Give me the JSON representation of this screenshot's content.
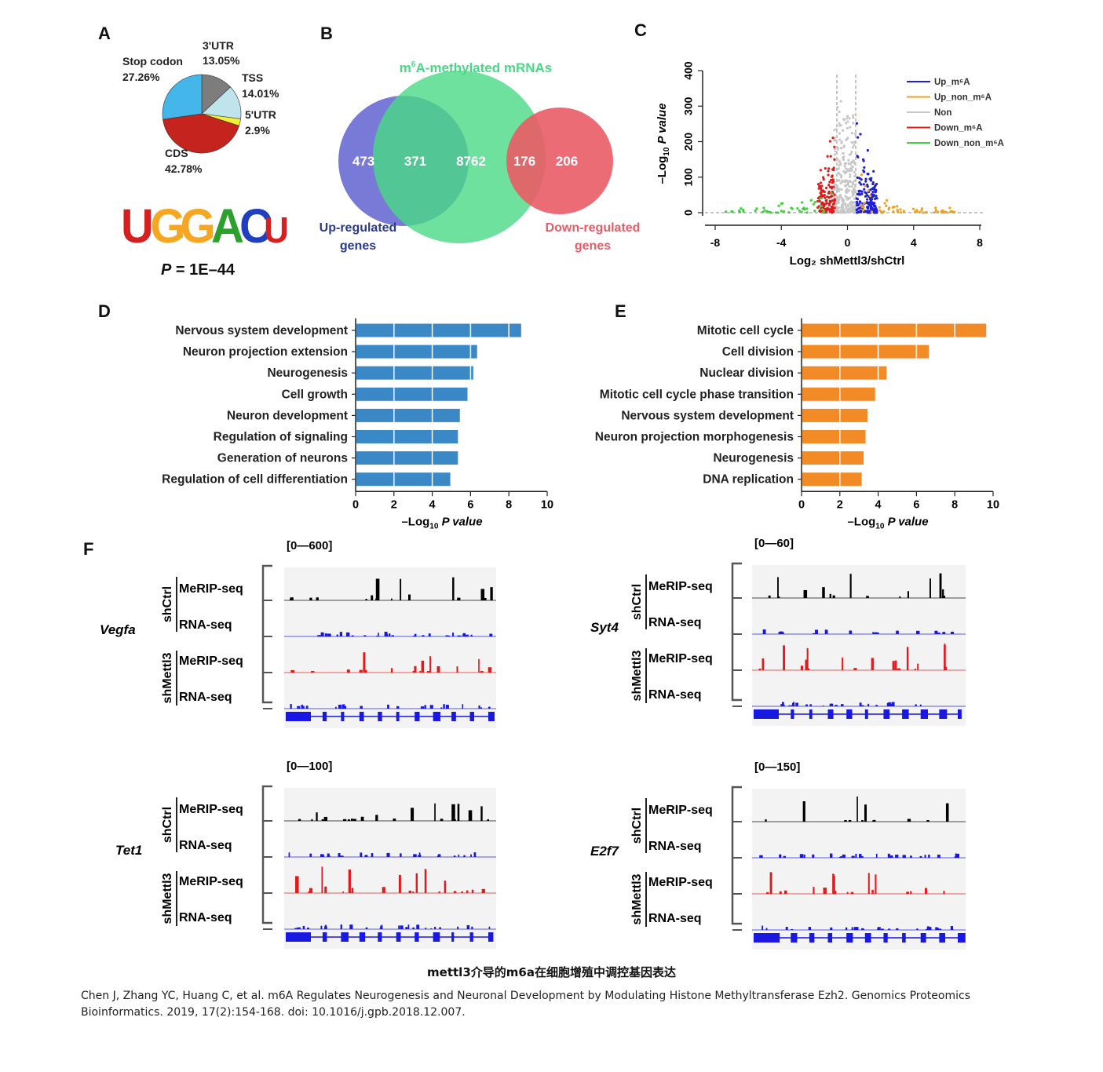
{
  "panels": {
    "a": "A",
    "b": "B",
    "c": "C",
    "d": "D",
    "e": "E",
    "f": "F"
  },
  "colors": {
    "blue_bar": "#3a88c6",
    "orange_bar": "#f28a26",
    "venn_up": "#6a6ad4",
    "venn_mid": "#49d985",
    "venn_down": "#e95c66",
    "up_m6a": "#1f1fd6",
    "up_non": "#f0a020",
    "non": "#c8c8c8",
    "down_m6a": "#e01b1b",
    "down_non": "#3ad43a"
  },
  "chart_data": [
    {
      "type": "pie",
      "panel": "A",
      "slices": [
        {
          "label": "3'UTR",
          "value": 13.05,
          "value_label": "13.05%",
          "color": "#7d7d7d"
        },
        {
          "label": "TSS",
          "value": 14.01,
          "value_label": "14.01%",
          "color": "#bfe4ec"
        },
        {
          "label": "5'UTR",
          "value": 2.9,
          "value_label": "2.9%",
          "color": "#f1f134"
        },
        {
          "label": "CDS",
          "value": 42.78,
          "value_label": "42.78%",
          "color": "#c5231d"
        },
        {
          "label": "Stop codon",
          "value": 27.26,
          "value_label": "27.26%",
          "color": "#45b6e9"
        }
      ],
      "motif": [
        "U",
        "G",
        "G",
        "A",
        "C",
        "U"
      ],
      "motif_colors": [
        "#d62020",
        "#f5a623",
        "#f5a623",
        "#2ca02c",
        "#1f3fbf",
        "#d62020"
      ],
      "p_label": "P",
      "p_value": "= 1E–44"
    },
    {
      "type": "venn",
      "panel": "B",
      "title_prefix": "m",
      "title_sup": "6",
      "title_rest": "A-methylated mRNAs",
      "set_up": "Up-regulated genes",
      "set_up_lines": [
        "Up-regulated",
        "genes"
      ],
      "set_down_lines": [
        "Down-regulated",
        "genes"
      ],
      "counts": {
        "up_only": "473",
        "up_and_methyl": "371",
        "methyl_only": "8762",
        "down_and_methyl": "176",
        "down_only": "206"
      }
    },
    {
      "type": "scatter",
      "panel": "C",
      "xlabel": "Log₂ shMettl3/shCtrl",
      "ylabel_parts": [
        "–Log",
        "10",
        " P value"
      ],
      "xlim": [
        -8,
        8
      ],
      "ylim": [
        0,
        400
      ],
      "xticks": [
        "-8",
        "-4",
        "0",
        "4",
        "8"
      ],
      "yticks": [
        "0",
        "100",
        "200",
        "300",
        "400"
      ],
      "legend_position": "top-right",
      "series": [
        {
          "name": "Up_m⁶A",
          "color": "#1f1fd6"
        },
        {
          "name": "Up_non_m⁶A",
          "color": "#f0a020"
        },
        {
          "name": "Non",
          "color": "#c8c8c8"
        },
        {
          "name": "Down_m⁶A",
          "color": "#e01b1b"
        },
        {
          "name": "Down_non_m⁶A",
          "color": "#3ad43a"
        }
      ]
    },
    {
      "type": "bar",
      "panel": "D",
      "orientation": "horizontal",
      "categories": [
        "Nervous system development",
        "Neuron projection extension",
        "Neurogenesis",
        "Cell growth",
        "Neuron development",
        "Regulation of signaling",
        "Generation of neurons",
        "Regulation of cell differentiation"
      ],
      "values": [
        8.6,
        6.3,
        6.1,
        5.8,
        5.4,
        5.3,
        5.3,
        4.9
      ],
      "xlim": [
        0,
        10
      ],
      "xticks": [
        "0",
        "2",
        "4",
        "6",
        "8",
        "10"
      ],
      "xlabel_parts": [
        "–Log",
        "10",
        " P value"
      ],
      "color": "#3a88c6"
    },
    {
      "type": "bar",
      "panel": "E",
      "orientation": "horizontal",
      "categories": [
        "Mitotic cell cycle",
        "Cell division",
        "Nuclear division",
        "Mitotic cell cycle phase transition",
        "Nervous system development",
        "Neuron projection morphogenesis",
        "Neurogenesis",
        "DNA replication"
      ],
      "values": [
        9.6,
        6.6,
        4.4,
        3.8,
        3.4,
        3.3,
        3.2,
        3.1
      ],
      "xlim": [
        0,
        10
      ],
      "xticks": [
        "0",
        "2",
        "4",
        "6",
        "8",
        "10"
      ],
      "xlabel_parts": [
        "–Log",
        "10",
        " P value"
      ],
      "color": "#f28a26"
    }
  ],
  "tracks": {
    "track_labels": {
      "merip": "MeRIP-seq",
      "rna": "RNA-seq"
    },
    "group_labels": {
      "ctrl": "shCtrl",
      "mettl3": "shMettl3"
    },
    "genes": [
      {
        "name": "Vegfa",
        "range": "[0—600]"
      },
      {
        "name": "Syt4",
        "range": "[0—60]"
      },
      {
        "name": "Tet1",
        "range": "[0—100]"
      },
      {
        "name": "E2f7",
        "range": "[0—150]"
      }
    ]
  },
  "caption": "mettl3介导的m6a在细胞增殖中调控基因表达",
  "reference": "Chen J, Zhang YC, Huang C, et al. m6A Regulates Neurogenesis and Neuronal Development by Modulating Histone Methyltransferase Ezh2. Genomics Proteomics Bioinformatics. 2019, 17(2):154-168. doi: 10.1016/j.gpb.2018.12.007."
}
